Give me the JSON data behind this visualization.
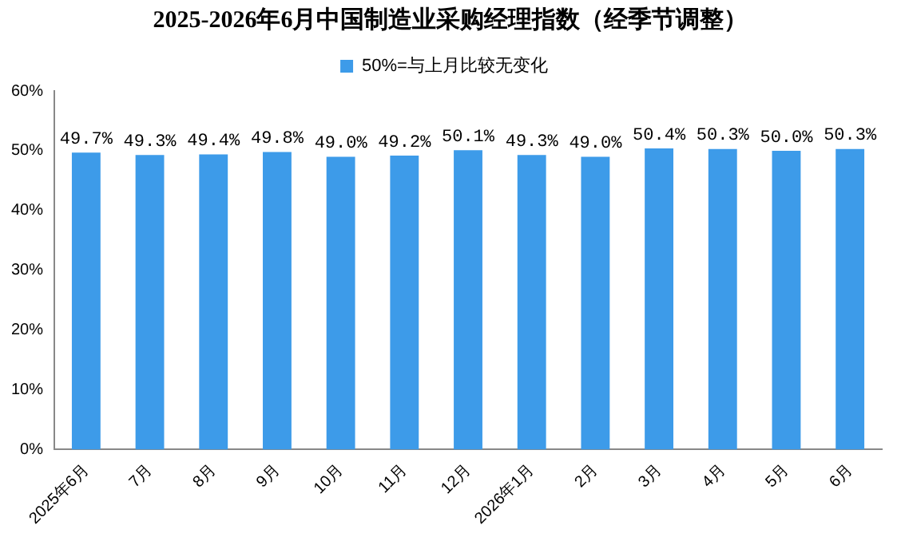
{
  "chart_data": {
    "type": "bar",
    "title": "2025-2026年6月中国制造业采购经理指数（经季节调整）",
    "categories": [
      "2025年6月",
      "7月",
      "8月",
      "9月",
      "10月",
      "11月",
      "12月",
      "2026年1月",
      "2月",
      "3月",
      "4月",
      "5月",
      "6月"
    ],
    "series": [
      {
        "name": "50%=与上月比较无变化",
        "color": "#3d9be9",
        "values": [
          49.7,
          49.3,
          49.4,
          49.8,
          49.0,
          49.2,
          50.1,
          49.3,
          49.0,
          50.4,
          50.3,
          50.0,
          50.3
        ],
        "value_labels": [
          "49.7%",
          "49.3%",
          "49.4%",
          "49.8%",
          "49.0%",
          "49.2%",
          "50.1%",
          "49.3%",
          "49.0%",
          "50.4%",
          "50.3%",
          "50.0%",
          "50.3%"
        ]
      }
    ],
    "ylim": [
      0,
      60
    ],
    "yticks": [
      {
        "value": 0,
        "label": "0%"
      },
      {
        "value": 10,
        "label": "10%"
      },
      {
        "value": 20,
        "label": "20%"
      },
      {
        "value": 30,
        "label": "30%"
      },
      {
        "value": 40,
        "label": "40%"
      },
      {
        "value": 50,
        "label": "50%"
      },
      {
        "value": 60,
        "label": "60%"
      }
    ],
    "grid": false,
    "legend": "top"
  }
}
